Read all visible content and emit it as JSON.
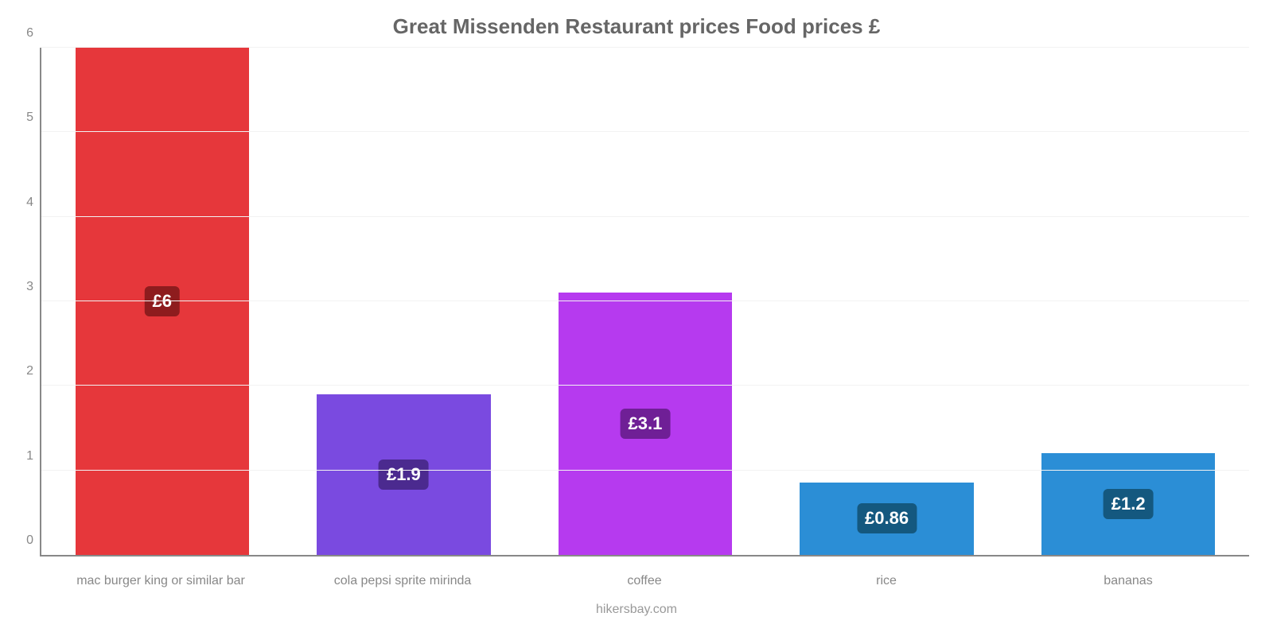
{
  "chart": {
    "type": "bar",
    "title": "Great Missenden Restaurant prices Food prices £",
    "title_color": "#666666",
    "title_fontsize": 26,
    "title_fontweight": 700,
    "footer": "hikersbay.com",
    "footer_color": "#999999",
    "background_color": "#ffffff",
    "axis_color": "#888888",
    "grid_color": "#f2f2f2",
    "tick_label_color": "#888888",
    "x_label_color": "#888888",
    "ylim": [
      0,
      6
    ],
    "ytick_step": 1,
    "bar_width_pct": 72,
    "label_badge_radius": 6,
    "label_badge_text_color": "#ffffff",
    "label_badge_fontsize": 22,
    "categories": [
      "mac burger king or similar bar",
      "cola pepsi sprite mirinda",
      "coffee",
      "rice",
      "bananas"
    ],
    "values": [
      6,
      1.9,
      3.1,
      0.86,
      1.2
    ],
    "value_labels": [
      "£6",
      "£1.9",
      "£3.1",
      "£0.86",
      "£1.2"
    ],
    "bar_colors": [
      "#e6373b",
      "#7a4ae0",
      "#b63aef",
      "#2b8ed6",
      "#2b8ed6"
    ],
    "badge_colors": [
      "#8e1c1e",
      "#4b2a8f",
      "#6f1f96",
      "#14587f",
      "#14587f"
    ]
  }
}
